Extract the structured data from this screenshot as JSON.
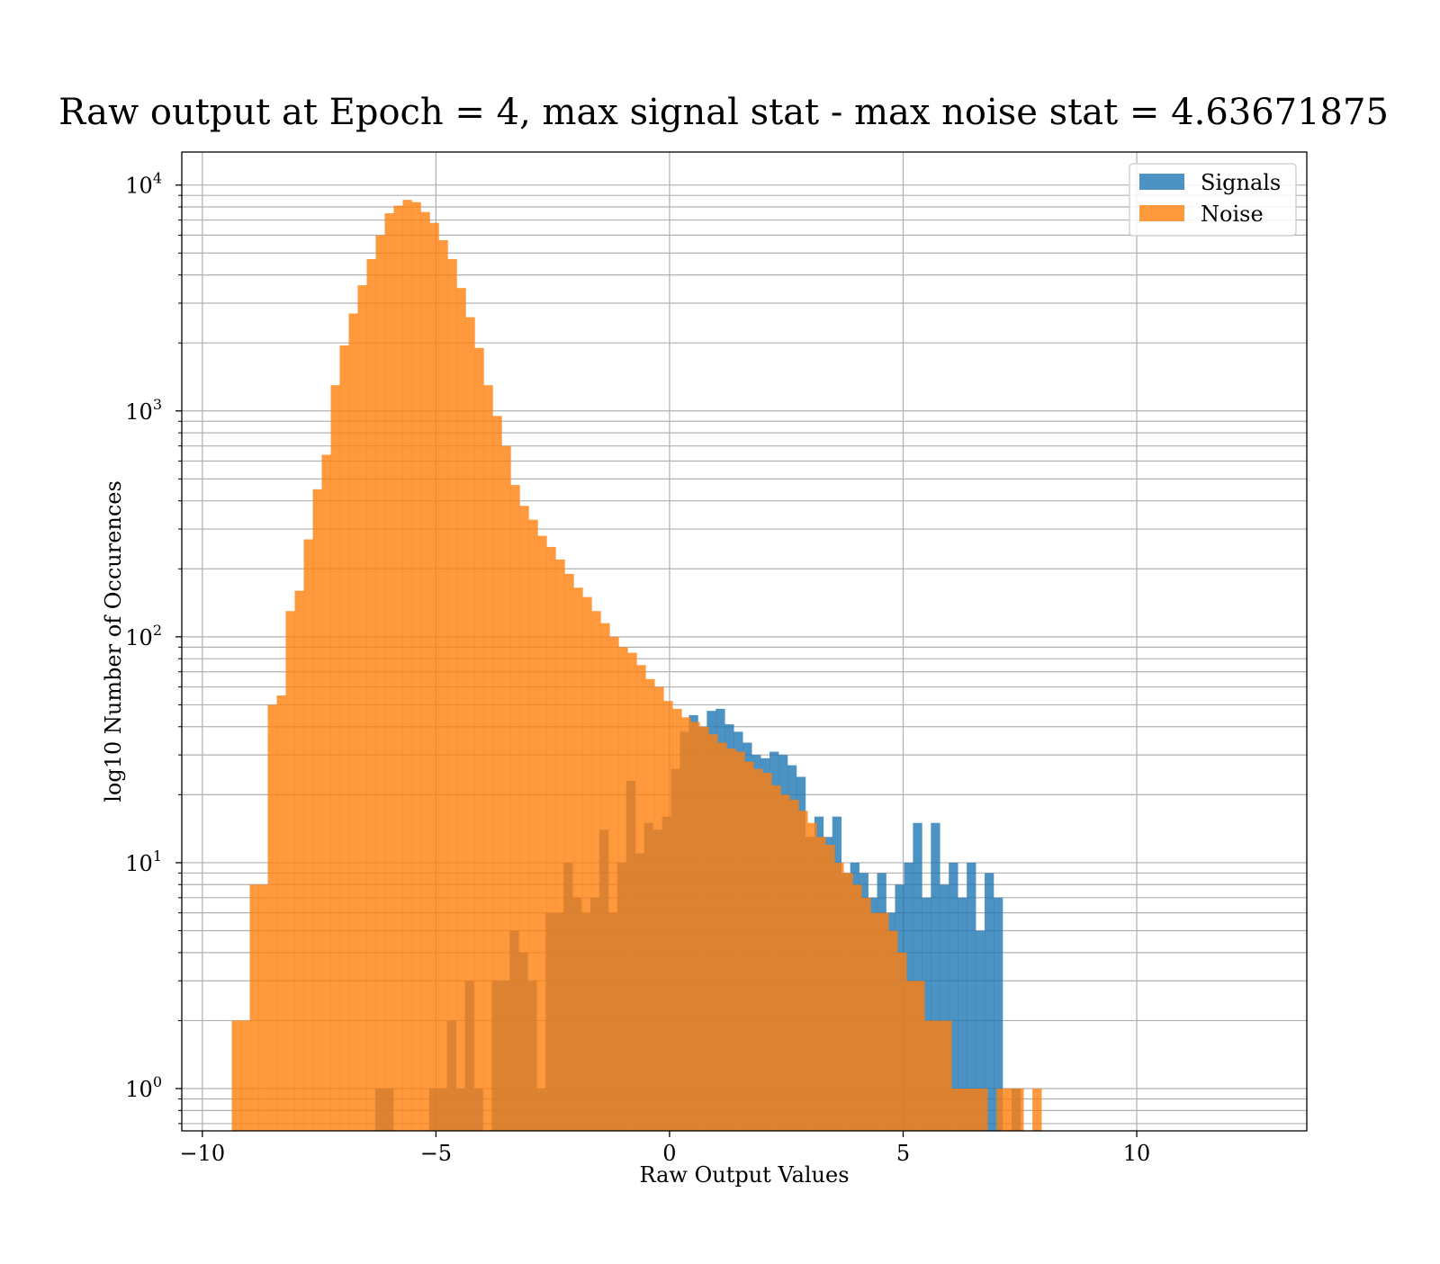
{
  "chart_data": {
    "type": "bar",
    "title": "Raw output at Epoch = 4, max signal stat - max noise stat = 4.63671875",
    "xlabel": "Raw Output Values",
    "ylabel": "log10 Number of Occurences",
    "xlim": [
      -10.44,
      13.64
    ],
    "ylim": [
      0.65,
      14000
    ],
    "yscale": "log",
    "grid": true,
    "legend_position": "top-right",
    "x_ticks": [
      {
        "value": -10,
        "label": "−10"
      },
      {
        "value": -5,
        "label": "−5"
      },
      {
        "value": 0,
        "label": "0"
      },
      {
        "value": 5,
        "label": "5"
      },
      {
        "value": 10,
        "label": "10"
      }
    ],
    "y_ticks": [
      {
        "value": 1,
        "base": "10",
        "exp": "0"
      },
      {
        "value": 10,
        "base": "10",
        "exp": "1"
      },
      {
        "value": 100,
        "base": "10",
        "exp": "2"
      },
      {
        "value": 1000,
        "base": "10",
        "exp": "3"
      },
      {
        "value": 10000,
        "base": "10",
        "exp": "4"
      }
    ],
    "series": [
      {
        "name": "Signals",
        "color": "#1f77b4",
        "opacity": 0.8,
        "bin_edges": [
          -6.3,
          12.5
        ],
        "bin_count": 98,
        "counts": [
          1,
          1,
          0,
          0,
          0,
          0,
          1,
          1,
          2,
          1,
          3,
          1,
          0,
          3,
          3,
          5,
          4,
          3,
          1,
          6,
          6,
          10,
          7,
          6,
          7,
          14,
          6,
          10,
          23,
          11,
          15,
          14,
          16,
          26,
          38,
          45,
          40,
          47,
          48,
          41,
          38,
          34,
          30,
          29,
          31,
          30,
          27,
          24,
          13,
          16,
          13,
          16,
          9,
          10,
          9,
          7,
          9,
          6,
          8,
          10,
          15,
          7,
          15,
          8,
          10,
          7,
          10,
          5,
          9,
          7,
          0,
          1,
          0,
          0,
          0,
          0,
          0,
          0,
          0,
          0,
          0,
          0,
          0,
          0,
          0,
          0,
          0,
          0,
          0,
          0,
          0,
          0,
          0,
          0,
          0,
          0,
          0,
          0
        ]
      },
      {
        "name": "Noise",
        "color": "#ff7f0e",
        "opacity": 0.8,
        "bin_edges": [
          -9.37,
          7.96
        ],
        "bin_count": 90,
        "counts": [
          2,
          2,
          8,
          8,
          50,
          55,
          130,
          160,
          270,
          450,
          640,
          1300,
          1950,
          2700,
          3600,
          4700,
          6000,
          7500,
          8100,
          8600,
          8400,
          7600,
          6800,
          5700,
          4700,
          3500,
          2600,
          1900,
          1300,
          950,
          700,
          470,
          380,
          330,
          280,
          250,
          220,
          190,
          165,
          150,
          130,
          115,
          100,
          90,
          85,
          75,
          65,
          60,
          52,
          48,
          44,
          42,
          40,
          37,
          34,
          32,
          31,
          28,
          26,
          25,
          22,
          20,
          19,
          17,
          15,
          13,
          12,
          10,
          9,
          8,
          7,
          6,
          6,
          5,
          4,
          3,
          3,
          2,
          2,
          2,
          1,
          1,
          1,
          1,
          0,
          1,
          1,
          1,
          0,
          1
        ]
      }
    ]
  }
}
